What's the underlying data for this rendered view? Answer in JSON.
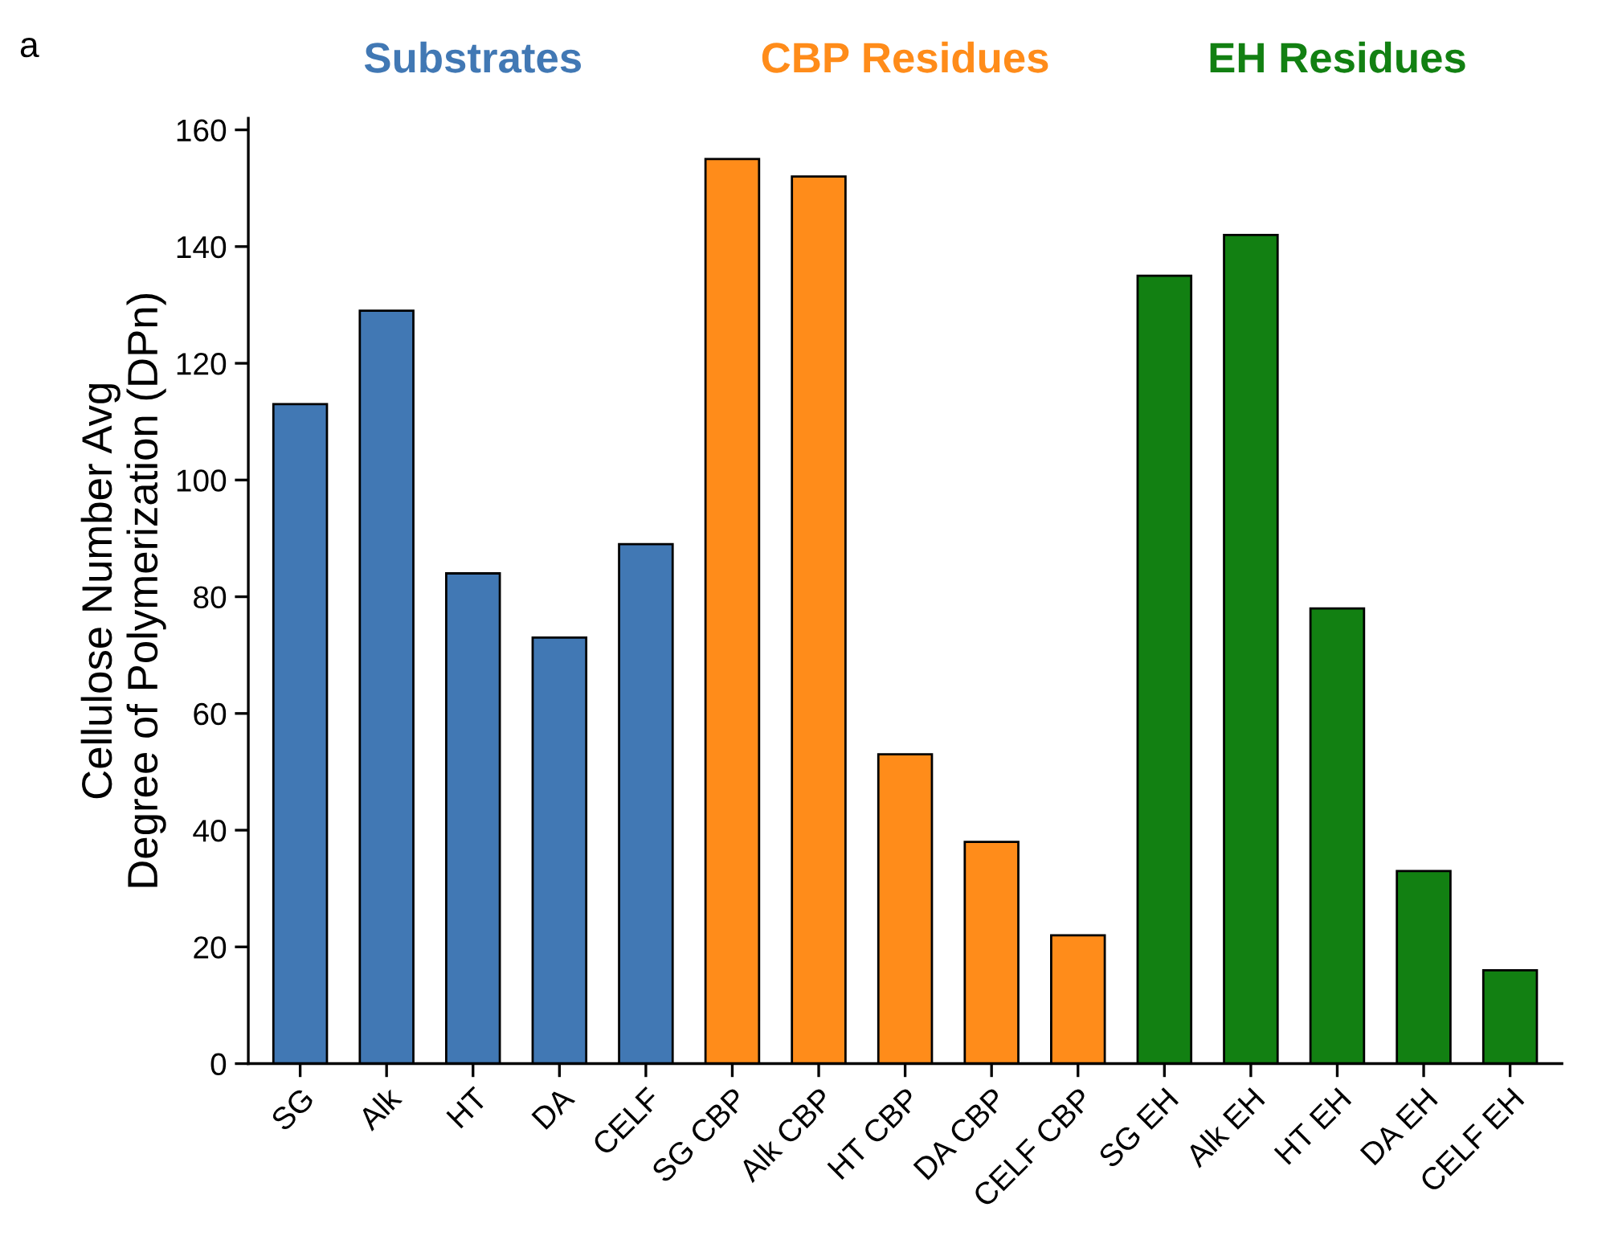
{
  "chart_data": {
    "type": "bar",
    "ylabel": "Cellulose Number Avg\nDegree of Polymerization (DPn)",
    "categories": [
      "SG",
      "Alk",
      "HT",
      "DA",
      "CELF",
      "SG CBP",
      "Alk CBP",
      "HT CBP",
      "DA CBP",
      "CELF CBP",
      "SG EH",
      "Alk EH",
      "HT EH",
      "DA EH",
      "CELF EH"
    ],
    "values": [
      113,
      129,
      84,
      73,
      89,
      155,
      152,
      53,
      38,
      22,
      135,
      142,
      78,
      33,
      16
    ],
    "colors": [
      "#4178b4",
      "#4178b4",
      "#4178b4",
      "#4178b4",
      "#4178b4",
      "#ff8c1a",
      "#ff8c1a",
      "#ff8c1a",
      "#ff8c1a",
      "#ff8c1a",
      "#128012",
      "#128012",
      "#128012",
      "#128012",
      "#128012"
    ],
    "ylim": [
      0,
      162
    ],
    "yticks": [
      0,
      20,
      40,
      60,
      80,
      100,
      120,
      140,
      160
    ],
    "grid": false,
    "annotations": [
      "a",
      "Substrates",
      "CBP Residues",
      "EH Residues"
    ]
  }
}
